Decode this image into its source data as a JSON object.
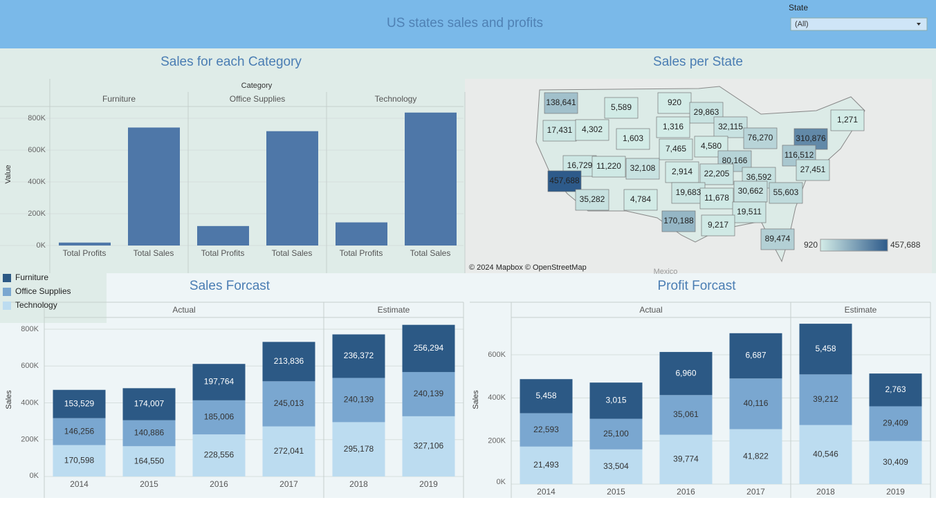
{
  "header": {
    "title": "US states sales and profits",
    "filter": {
      "label": "State",
      "value": "(All)"
    }
  },
  "chart_data": [
    {
      "type": "bar",
      "title": "Sales for each Category",
      "x_label": "Category",
      "y_label": "Value",
      "categories": [
        "Total Profits",
        "Total Sales"
      ],
      "series": [
        {
          "name": "Furniture",
          "values": [
            18451,
            741999
          ]
        },
        {
          "name": "Office Supplies",
          "values": [
            122490,
            719047
          ]
        },
        {
          "name": "Technology",
          "values": [
            145455,
            836154
          ]
        }
      ],
      "color": "#4e77a8",
      "ylim": [
        0,
        870000
      ],
      "yticks": [
        {
          "value": 0,
          "label": "0K"
        },
        {
          "value": 200000,
          "label": "200K"
        },
        {
          "value": 400000,
          "label": "400K"
        },
        {
          "value": 600000,
          "label": "600K"
        },
        {
          "value": 800000,
          "label": "800K"
        }
      ],
      "grid": true
    },
    {
      "type": "map",
      "title": "Sales per State",
      "values": [
        138641,
        5589,
        920,
        29863,
        17431,
        4302,
        1603,
        1316,
        32115,
        1271,
        76270,
        310876,
        4580,
        7465,
        116512,
        80166,
        16729,
        11220,
        32108,
        2914,
        22205,
        27451,
        36592,
        457688,
        30662,
        55603,
        19683,
        11678,
        35282,
        4784,
        19511,
        170188,
        9217,
        89474
      ],
      "value_labels": [
        "138,641",
        "5,589",
        "920",
        "29,863",
        "17,431",
        "4,302",
        "1,603",
        "1,316",
        "32,115",
        "1,271",
        "76,270",
        "310,876",
        "4,580",
        "7,465",
        "116,512",
        "80,166",
        "16,729",
        "11,220",
        "32,108",
        "2,914",
        "22,205",
        "27,451",
        "36,592",
        "457,688",
        "30,662",
        "55,603",
        "19,683",
        "11,678",
        "35,282",
        "4,784",
        "19,511",
        "170,188",
        "9,217",
        "89,474"
      ],
      "colorbar": {
        "min": 920,
        "max": {
          "value": 457688,
          "label": "457,688"
        },
        "colors": [
          "#d3ece7",
          "#2d5a8a"
        ]
      },
      "attribution": "© 2024 Mapbox © OpenStreetMap",
      "place_label": "Mexico"
    },
    {
      "type": "stacked_bar",
      "title": "Sales Forcast",
      "y_label": "Sales",
      "groups": [
        {
          "label": "Actual",
          "categories": [
            "2014",
            "2015",
            "2016",
            "2017"
          ]
        },
        {
          "label": "Estimate",
          "categories": [
            "2018",
            "2019"
          ]
        }
      ],
      "series": [
        {
          "name": "Furniture",
          "color": "#2c5985",
          "values": [
            153529,
            174007,
            197764,
            213836,
            236372,
            256294
          ],
          "value_labels": [
            "153,529",
            "174,007",
            "197,764",
            "213,836",
            "236,372",
            "256,294"
          ]
        },
        {
          "name": "Office Supplies",
          "color": "#7aa7d0",
          "values": [
            146256,
            140886,
            185006,
            245013,
            240139,
            240139
          ],
          "value_labels": [
            "146,256",
            "140,886",
            "185,006",
            "245,013",
            "240,139",
            "240,139"
          ]
        },
        {
          "name": "Technology",
          "color": "#bcdcf0",
          "values": [
            170598,
            164550,
            228556,
            272041,
            295178,
            327106
          ],
          "value_labels": [
            "170,598",
            "164,550",
            "228,556",
            "272,041",
            "295,178",
            "327,106"
          ]
        }
      ],
      "ylim": [
        0,
        860000
      ],
      "yticks": [
        {
          "value": 0,
          "label": "0K"
        },
        {
          "value": 200000,
          "label": "200K"
        },
        {
          "value": 400000,
          "label": "400K"
        },
        {
          "value": 600000,
          "label": "600K"
        },
        {
          "value": 800000,
          "label": "800K"
        }
      ]
    },
    {
      "type": "stacked_bar",
      "title": "Profit Forcast",
      "y_label": "Sales",
      "groups": [
        {
          "label": "Actual",
          "categories": [
            "2014",
            "2015",
            "2016",
            "2017"
          ]
        },
        {
          "label": "Estimate",
          "categories": [
            "2018",
            "2019"
          ]
        }
      ],
      "series": [
        {
          "color": "#2c5985",
          "values": [
            158000,
            168000,
            200000,
            210000,
            235000,
            152000
          ],
          "labels": [
            "5,458",
            "3,015",
            "6,960",
            "6,687",
            "5,458",
            "2,763"
          ]
        },
        {
          "color": "#7aa7d0",
          "values": [
            155000,
            142000,
            184000,
            235000,
            235000,
            161000
          ],
          "labels": [
            "22,593",
            "25,100",
            "35,061",
            "40,116",
            "39,212",
            "29,409"
          ]
        },
        {
          "color": "#bcdcf0",
          "values": [
            174000,
            161000,
            229000,
            255000,
            274000,
            200000
          ],
          "labels": [
            "21,493",
            "33,504",
            "39,774",
            "41,822",
            "40,546",
            "30,409"
          ]
        }
      ],
      "ylim": [
        0,
        770000
      ],
      "yticks": [
        {
          "value": 0,
          "label": "0K"
        },
        {
          "value": 200000,
          "label": "200K"
        },
        {
          "value": 400000,
          "label": "400K"
        },
        {
          "value": 600000,
          "label": "600K"
        }
      ]
    }
  ]
}
